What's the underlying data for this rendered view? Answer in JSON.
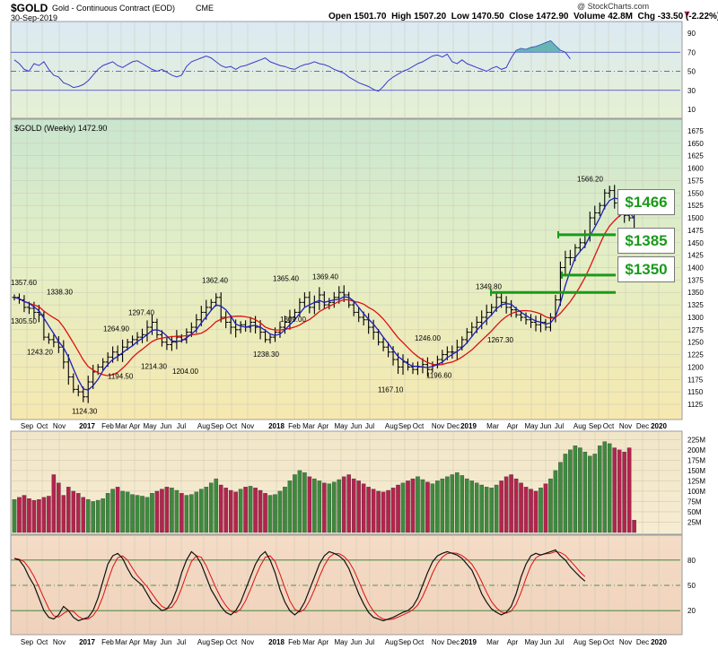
{
  "header": {
    "symbol": "$GOLD",
    "name": "Gold - Continuous Contract (EOD)",
    "exchange": "CME",
    "date": "30-Sep-2019",
    "open_label": "Open",
    "open": "1501.70",
    "high_label": "High",
    "high": "1507.20",
    "low_label": "Low",
    "low": "1470.50",
    "close_label": "Close",
    "close": "1472.90",
    "volume_label": "Volume",
    "volume": "42.8M",
    "chg_label": "Chg",
    "chg": "-33.50 (-2.22%)",
    "source": "@ StockCharts.com"
  },
  "price_legend": "$GOLD (Weekly) 1472.90",
  "callouts": {
    "c1466": "$1466",
    "c1385": "$1385",
    "c1350": "$1350"
  },
  "colors": {
    "up": "#3d8a3d",
    "down": "#b2244e",
    "fast_ma": "#1c1cbf",
    "slow_ma": "#dd1111",
    "support": "#1a9a1a",
    "rsi": "#3b3bcc"
  },
  "chart_data": [
    {
      "type": "line",
      "name": "rsi",
      "ylim": [
        0,
        100
      ],
      "yticks": [
        "90",
        "70",
        "50",
        "30",
        "10"
      ],
      "reference_lines": [
        70,
        50,
        30
      ],
      "values": [
        62,
        58,
        52,
        50,
        58,
        56,
        60,
        52,
        46,
        44,
        38,
        36,
        33,
        34,
        36,
        40,
        46,
        52,
        56,
        58,
        60,
        56,
        54,
        57,
        60,
        61,
        58,
        55,
        52,
        50,
        52,
        49,
        46,
        44,
        46,
        55,
        60,
        62,
        64,
        66,
        64,
        60,
        56,
        54,
        55,
        52,
        55,
        56,
        58,
        60,
        62,
        64,
        60,
        58,
        56,
        55,
        53,
        52,
        55,
        57,
        58,
        60,
        58,
        57,
        55,
        52,
        50,
        48,
        44,
        41,
        38,
        36,
        34,
        31,
        29,
        34,
        40,
        44,
        47,
        50,
        52,
        55,
        58,
        60,
        63,
        66,
        67,
        65,
        68,
        60,
        58,
        62,
        58,
        56,
        54,
        52,
        50,
        53,
        55,
        52,
        54,
        64,
        72,
        74,
        73,
        75,
        76,
        78,
        80,
        82,
        77,
        72,
        70,
        63
      ]
    },
    {
      "type": "bar",
      "name": "price",
      "title": "$GOLD (Weekly) 1472.90",
      "ylim": [
        1100,
        1690
      ],
      "yticks": [
        1675,
        1650,
        1625,
        1600,
        1575,
        1550,
        1525,
        1500,
        1475,
        1450,
        1425,
        1400,
        1375,
        1350,
        1325,
        1300,
        1275,
        1250,
        1225,
        1200,
        1175,
        1150,
        1125
      ],
      "x_labels": [
        "Sep",
        "Oct",
        "Nov",
        "2017",
        "Feb",
        "Mar",
        "Apr",
        "May",
        "Jun",
        "Jul",
        "Aug",
        "Sep",
        "Oct",
        "Nov",
        "2018",
        "Feb",
        "Mar",
        "Apr",
        "May",
        "Jun",
        "Jul",
        "Aug",
        "Sep",
        "Oct",
        "Nov",
        "Dec",
        "2019",
        "Mar",
        "Apr",
        "May",
        "Jun",
        "Jul",
        "Aug",
        "Sep",
        "Oct",
        "Nov",
        "Dec",
        "2020"
      ],
      "close": [
        1340,
        1335,
        1320,
        1318,
        1310,
        1305,
        1260,
        1255,
        1250,
        1240,
        1210,
        1180,
        1155,
        1150,
        1140,
        1170,
        1190,
        1200,
        1210,
        1220,
        1230,
        1225,
        1240,
        1250,
        1255,
        1260,
        1265,
        1280,
        1290,
        1265,
        1250,
        1245,
        1250,
        1260,
        1255,
        1270,
        1280,
        1295,
        1310,
        1320,
        1330,
        1340,
        1300,
        1290,
        1280,
        1275,
        1285,
        1280,
        1290,
        1280,
        1270,
        1255,
        1260,
        1270,
        1280,
        1290,
        1300,
        1310,
        1330,
        1340,
        1320,
        1330,
        1345,
        1325,
        1330,
        1340,
        1350,
        1345,
        1325,
        1310,
        1300,
        1295,
        1280,
        1270,
        1250,
        1240,
        1230,
        1215,
        1200,
        1210,
        1200,
        1195,
        1200,
        1205,
        1195,
        1205,
        1215,
        1225,
        1230,
        1230,
        1240,
        1255,
        1270,
        1280,
        1290,
        1300,
        1310,
        1320,
        1340,
        1330,
        1320,
        1315,
        1305,
        1300,
        1295,
        1290,
        1285,
        1290,
        1280,
        1300,
        1335,
        1400,
        1420,
        1420,
        1440,
        1450,
        1465,
        1500,
        1510,
        1525,
        1550,
        1555,
        1530,
        1515,
        1505,
        1500,
        1473
      ],
      "highs_labeled": [
        {
          "label": "1357.60",
          "value": 1357.6
        },
        {
          "label": "1338.30",
          "value": 1338.3
        },
        {
          "label": "1264.90",
          "value": 1264.9
        },
        {
          "label": "1297.40",
          "value": 1297.4
        },
        {
          "label": "1362.40",
          "value": 1362.4
        },
        {
          "label": "1365.40",
          "value": 1365.4
        },
        {
          "label": "1369.40",
          "value": 1369.4
        },
        {
          "label": "1349.80",
          "value": 1349.8
        },
        {
          "label": "1246.00",
          "value": 1246.0
        },
        {
          "label": "1566.20",
          "value": 1566.2
        }
      ],
      "lows_labeled": [
        {
          "label": "1305.50",
          "value": 1305.5
        },
        {
          "label": "1243.20",
          "value": 1243.2
        },
        {
          "label": "1124.30",
          "value": 1124.3
        },
        {
          "label": "1194.50",
          "value": 1194.5
        },
        {
          "label": "1214.30",
          "value": 1214.3
        },
        {
          "label": "1204.00",
          "value": 1204.0
        },
        {
          "label": "1309.00",
          "value": 1309.0
        },
        {
          "label": "1238.30",
          "value": 1238.3
        },
        {
          "label": "1167.10",
          "value": 1167.1
        },
        {
          "label": "1196.60",
          "value": 1196.6
        },
        {
          "label": "1267.30",
          "value": 1267.3
        }
      ],
      "support_levels": [
        1466,
        1385,
        1350
      ]
    },
    {
      "type": "bar",
      "name": "volume",
      "ylim": [
        0,
        230
      ],
      "yticks": [
        "225M",
        "200M",
        "175M",
        "150M",
        "125M",
        "100M",
        "75M",
        "50M",
        "25M"
      ],
      "values": [
        80,
        85,
        90,
        82,
        78,
        80,
        85,
        88,
        140,
        120,
        90,
        110,
        100,
        95,
        85,
        80,
        75,
        78,
        82,
        95,
        105,
        110,
        100,
        98,
        92,
        90,
        88,
        85,
        95,
        100,
        105,
        110,
        108,
        102,
        95,
        90,
        92,
        98,
        105,
        110,
        120,
        130,
        115,
        108,
        102,
        98,
        105,
        110,
        112,
        108,
        102,
        95,
        90,
        92,
        100,
        110,
        125,
        140,
        150,
        145,
        135,
        130,
        125,
        120,
        118,
        122,
        128,
        135,
        140,
        130,
        125,
        118,
        110,
        105,
        100,
        98,
        102,
        108,
        115,
        120,
        125,
        130,
        135,
        128,
        122,
        118,
        125,
        130,
        135,
        140,
        145,
        138,
        130,
        125,
        120,
        115,
        110,
        108,
        115,
        125,
        135,
        140,
        130,
        120,
        110,
        105,
        100,
        108,
        118,
        130,
        150,
        170,
        190,
        200,
        210,
        205,
        195,
        185,
        190,
        210,
        220,
        215,
        205,
        200,
        195,
        205,
        30
      ]
    },
    {
      "type": "line",
      "name": "stochastic",
      "ylim": [
        0,
        100
      ],
      "yticks": [
        "80",
        "50",
        "20"
      ],
      "reference_lines": [
        80,
        50,
        20
      ],
      "values": [
        82,
        80,
        72,
        60,
        50,
        35,
        20,
        12,
        10,
        15,
        25,
        20,
        12,
        8,
        10,
        12,
        20,
        35,
        55,
        75,
        85,
        88,
        82,
        70,
        60,
        55,
        50,
        40,
        30,
        25,
        20,
        22,
        30,
        45,
        65,
        80,
        90,
        85,
        75,
        60,
        45,
        35,
        25,
        18,
        15,
        20,
        30,
        45,
        60,
        75,
        85,
        90,
        80,
        65,
        45,
        30,
        20,
        15,
        20,
        30,
        45,
        60,
        75,
        85,
        90,
        88,
        85,
        80,
        70,
        55,
        40,
        28,
        18,
        12,
        10,
        8,
        10,
        12,
        15,
        18,
        20,
        25,
        35,
        50,
        65,
        78,
        85,
        88,
        90,
        88,
        86,
        82,
        75,
        68,
        55,
        40,
        30,
        22,
        18,
        15,
        18,
        25,
        40,
        60,
        75,
        85,
        88,
        86,
        88,
        90,
        92,
        85,
        80,
        72,
        66,
        60,
        55
      ]
    }
  ]
}
